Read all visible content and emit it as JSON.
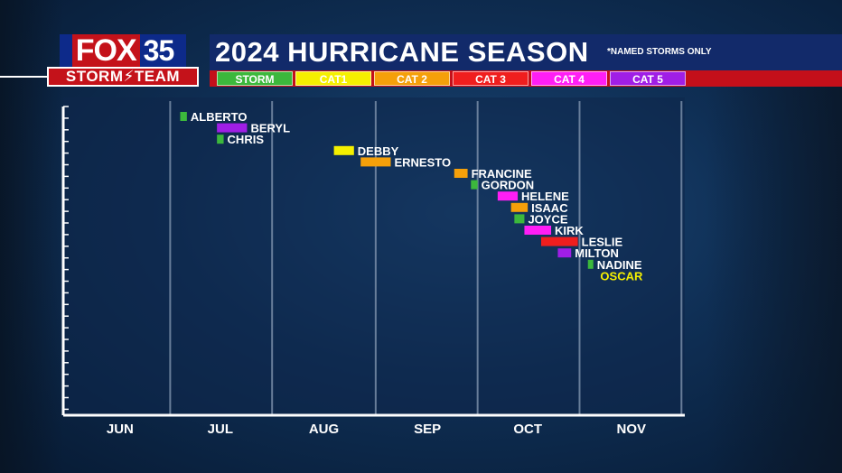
{
  "header": {
    "logo_brand": "FOX",
    "logo_number": "35",
    "logo_sub": "STORM⚡TEAM",
    "title": "2024 HURRICANE SEASON",
    "note": "*NAMED STORMS ONLY"
  },
  "legend": [
    {
      "label": "STORM",
      "color": "#3cb83c"
    },
    {
      "label": "CAT1",
      "color": "#f5f000"
    },
    {
      "label": "CAT 2",
      "color": "#f5a00a"
    },
    {
      "label": "CAT 3",
      "color": "#f01e1e"
    },
    {
      "label": "CAT 4",
      "color": "#ff1ef5"
    },
    {
      "label": "CAT 5",
      "color": "#a01ee6"
    }
  ],
  "chart_data": {
    "type": "bar",
    "orientation": "horizontal-timeline",
    "title": "2024 HURRICANE SEASON",
    "subtitle": "*NAMED STORMS ONLY",
    "x_unit": "day of year 2024",
    "x_ticks": [
      {
        "label": "JUN",
        "x": 153
      },
      {
        "label": "JUL",
        "x": 183
      },
      {
        "label": "AUG",
        "x": 214
      },
      {
        "label": "SEP",
        "x": 245
      },
      {
        "label": "OCT",
        "x": 275
      },
      {
        "label": "NOV",
        "x": 306
      }
    ],
    "xlim": [
      136,
      322
    ],
    "grid": "vertical",
    "storms": [
      {
        "name": "ALBERTO",
        "category": "STORM",
        "start": 171,
        "end": 173
      },
      {
        "name": "BERYL",
        "category": "CAT 5",
        "start": 182,
        "end": 191
      },
      {
        "name": "CHRIS",
        "category": "STORM",
        "start": 182,
        "end": 184
      },
      {
        "name": "DEBBY",
        "category": "CAT1",
        "start": 217,
        "end": 223
      },
      {
        "name": "ERNESTO",
        "category": "CAT 2",
        "start": 225,
        "end": 234
      },
      {
        "name": "FRANCINE",
        "category": "CAT 2",
        "start": 253,
        "end": 257
      },
      {
        "name": "GORDON",
        "category": "STORM",
        "start": 258,
        "end": 260
      },
      {
        "name": "HELENE",
        "category": "CAT 4",
        "start": 266,
        "end": 272
      },
      {
        "name": "ISAAC",
        "category": "CAT 2",
        "start": 270,
        "end": 275
      },
      {
        "name": "JOYCE",
        "category": "STORM",
        "start": 271,
        "end": 274
      },
      {
        "name": "KIRK",
        "category": "CAT 4",
        "start": 274,
        "end": 282
      },
      {
        "name": "LESLIE",
        "category": "CAT 3",
        "start": 279,
        "end": 290
      },
      {
        "name": "MILTON",
        "category": "CAT 5",
        "start": 284,
        "end": 288
      },
      {
        "name": "NADINE",
        "category": "STORM",
        "start": 293,
        "end": 294
      },
      {
        "name": "OSCAR",
        "category": "CAT1",
        "start": null,
        "end": null
      }
    ]
  }
}
